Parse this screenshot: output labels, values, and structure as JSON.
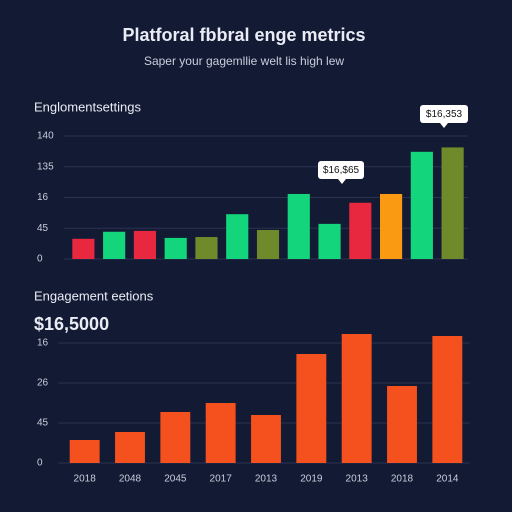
{
  "header": {
    "title": "Platforal fbbral enge metrics",
    "subtitle": "Saper your gagemllie welt lis high lew"
  },
  "chart_data": [
    {
      "type": "bar",
      "title": "Englomentsettings",
      "values": [
        23,
        31,
        32,
        24,
        25,
        51,
        33,
        74,
        40,
        64,
        74,
        122,
        127
      ],
      "colors": [
        "#e8283f",
        "#13d67c",
        "#e8283f",
        "#13d67c",
        "#6f8a2a",
        "#13d67c",
        "#6f8a2a",
        "#13d67c",
        "#13d67c",
        "#e8283f",
        "#f99a12",
        "#13d67c",
        "#6f8a2a"
      ],
      "ylim": [
        0,
        140
      ],
      "yticks": [
        0,
        {
          "value": 35,
          "label": "45"
        },
        {
          "value": 70,
          "label": "16"
        },
        {
          "value": 105,
          "label": "135"
        },
        140
      ],
      "annotations": [
        "$16,353",
        "$16,$65"
      ],
      "grid": true
    },
    {
      "type": "bar",
      "title": "Engagement eetions",
      "subtitle": "$16,5000",
      "categories": [
        "2018",
        "2048",
        "2045",
        "2017",
        "2013",
        "2019",
        "2013",
        "2018",
        "2014"
      ],
      "values": [
        23,
        31,
        51,
        60,
        48,
        109,
        129,
        77,
        127
      ],
      "color": "#f4511e",
      "ylim": [
        0,
        130
      ],
      "yticks": [
        0,
        {
          "value": 40,
          "label": "45"
        },
        {
          "value": 80,
          "label": "26"
        },
        {
          "value": 120,
          "label": "16"
        }
      ],
      "grid": true
    }
  ]
}
